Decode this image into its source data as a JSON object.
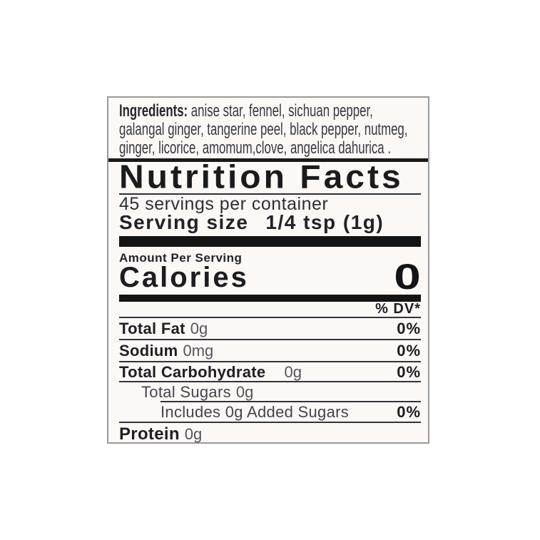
{
  "label": {
    "colors": {
      "paper": "#fbf8f6",
      "ink": "#1c1c1e",
      "muted_ink": "#55555c",
      "border": "#9a9a9a"
    },
    "ingredients": {
      "heading": "Ingredients:",
      "line1_rest": " anise star, fennel, sichuan pepper,",
      "line2": "galangal ginger, tangerine peel, black pepper, nutmeg,",
      "line3": "ginger, licorice, amomum,clove, angelica dahurica ."
    },
    "nutrition_facts": {
      "title": "Nutrition Facts",
      "servings_per_container": "45 servings per container",
      "serving_size_label": "Serving size",
      "serving_size_value": "1/4 tsp (1g)",
      "amount_per_serving": "Amount Per Serving",
      "calories_label": "Calories",
      "calories_value": "0",
      "daily_value_header": "% DV*",
      "rows": [
        {
          "label": "Total Fat",
          "amount": "0g",
          "daily_value": "0%"
        },
        {
          "label": "Sodium",
          "amount": "0mg",
          "daily_value": "0%"
        },
        {
          "label": "Total Carbohydrate",
          "amount": "0g",
          "daily_value": "0%"
        },
        {
          "label": "Total Sugars",
          "amount": "0g",
          "daily_value": ""
        },
        {
          "label": "Includes 0g Added Sugars",
          "amount": "",
          "daily_value": "0%"
        },
        {
          "label": "Protein",
          "amount": "0g",
          "daily_value": ""
        }
      ]
    }
  }
}
